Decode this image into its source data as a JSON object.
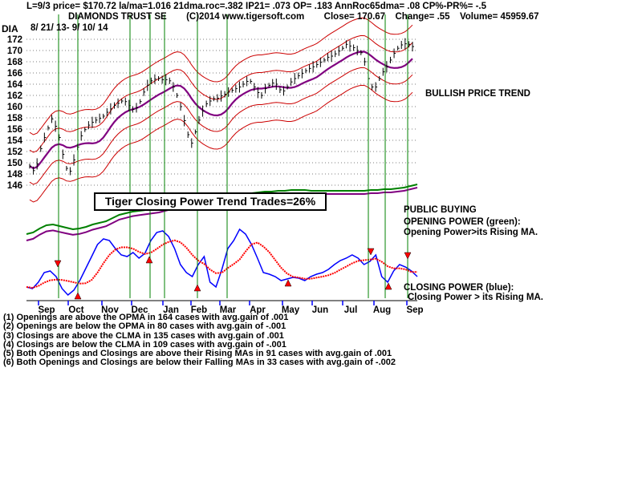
{
  "header": {
    "line1": "L=9/3  price= $170.72  la/ma=1.016 21dma.roc=.382 IP21= .073 OP= .183 AnnRoc65dma= .08 CP%-PR%= -.5",
    "name": "DIAMONDS TRUST SE",
    "copyright": "(C)2014 www.tigersoft.com",
    "close": "Close= 170.67",
    "change": "Change= .55",
    "volume": "Volume= 45959.67",
    "ticker": "DIA",
    "date_range": "8/ 21/ 13- 9/ 10/ 14"
  },
  "annotations": {
    "bullish": "BULLISH PRICE TREND",
    "ctp": "Tiger Closing Power Trend Trades=26%",
    "public_buying": "PUBLIC BUYING",
    "op_title": "OPENING POWER (green):",
    "op_desc": "Opening Power>its Rising MA.",
    "cp_title": "CLOSING POWER (blue):",
    "cp_desc": "Closing Power > its Rising MA."
  },
  "stats": [
    "(1) Openings are above the OPMA in  164 cases with avg.gain of  .001",
    "(2) Openings are below the OPMA in  80 cases with avg.gain of -.001",
    "(3) Closings are above the CLMA in  135 cases with avg.gain of  .001",
    "(4) Closings are below the CLMA in  109 cases with avg.gain of -.001",
    "(5) Both Openings and Closings are above their Rising MAs in  91 cases with avg.gain of  .001",
    "(6) Both Openings and Closings are below their Falling MAs in  33 cases with avg.gain of -.002"
  ],
  "colors": {
    "price": "#000000",
    "bands": "#cc0000",
    "ma": "#800080",
    "opening_power": "#008000",
    "closing_power": "#0000ff",
    "cp_ma": "#ff0000",
    "signal_lines": "#008000"
  },
  "chart_data": {
    "type": "line",
    "ylim": [
      146,
      173
    ],
    "yticks": [
      146,
      148,
      150,
      152,
      154,
      156,
      158,
      160,
      162,
      164,
      166,
      168,
      170,
      172
    ],
    "months": [
      "Sep",
      "Oct",
      "Nov",
      "Dec",
      "Jan",
      "Feb",
      "Mar",
      "Apr",
      "May",
      "Jun",
      "Jul",
      "Aug",
      "Sep"
    ],
    "grid": true,
    "series": [
      {
        "name": "price",
        "values": [
          149.4,
          148.6,
          149.8,
          152.5,
          154.5,
          156.2,
          157.8,
          156.5,
          154.5,
          151.5,
          149.0,
          148.5,
          150.5,
          152.8,
          154.8,
          155.9,
          156.7,
          157.2,
          157.6,
          157.9,
          158.3,
          159.0,
          159.6,
          160.2,
          160.6,
          161.0,
          160.9,
          160.2,
          159.5,
          159.8,
          160.9,
          162.6,
          163.8,
          164.6,
          164.9,
          165.0,
          164.8,
          164.8,
          164.6,
          163.5,
          162.0,
          160.0,
          157.5,
          155.0,
          153.5,
          155.5,
          157.6,
          159.2,
          160.5,
          161.0,
          161.4,
          161.5,
          161.9,
          162.2,
          162.6,
          162.9,
          163.2,
          163.5,
          164.0,
          164.5,
          164.5,
          163.5,
          162.5,
          162.0,
          163.2,
          163.8,
          164.2,
          164.0,
          163.0,
          162.8,
          163.5,
          164.4,
          165.0,
          165.5,
          165.9,
          166.4,
          166.8,
          167.1,
          167.5,
          167.9,
          168.3,
          168.8,
          169.0,
          169.4,
          169.9,
          170.4,
          171.1,
          170.8,
          170.5,
          170.0,
          169.6,
          168.0,
          165.0,
          163.5,
          163.5,
          165.0,
          166.2,
          167.1,
          168.3,
          169.5,
          170.4,
          171.0,
          171.2,
          171.1,
          170.7
        ]
      }
    ]
  }
}
